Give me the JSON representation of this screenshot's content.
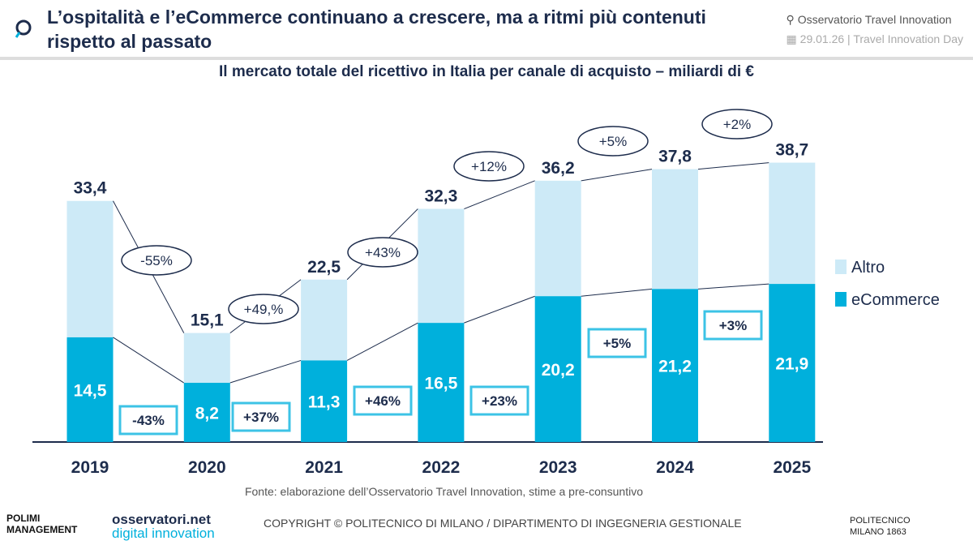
{
  "header": {
    "title": "L’ospitalità e l’eCommerce continuano a crescere, ma a ritmi più contenuti rispetto al passato",
    "observatory": "Osservatorio Travel Innovation",
    "event": "29.01.26 | Travel Innovation Day"
  },
  "chart_data": {
    "type": "bar",
    "stacked": true,
    "title": "Il mercato totale del ricettivo in Italia per canale di acquisto – miliardi di €",
    "categories": [
      "2019",
      "2020",
      "2021",
      "2022",
      "2023",
      "2024",
      "2025"
    ],
    "series": [
      {
        "name": "eCommerce",
        "values": [
          14.5,
          8.2,
          11.3,
          16.5,
          20.2,
          21.2,
          21.9
        ],
        "labels": [
          "14,5",
          "8,2",
          "11,3",
          "16,5",
          "20,2",
          "21,2",
          "21,9"
        ],
        "color": "#00b0dc"
      },
      {
        "name": "Altro",
        "color": "#cdeaf7"
      }
    ],
    "totals": [
      33.4,
      15.1,
      22.5,
      32.3,
      36.2,
      37.8,
      38.7
    ],
    "total_labels": [
      "33,4",
      "15,1",
      "22,5",
      "32,3",
      "36,2",
      "37,8",
      "38,7"
    ],
    "total_growth": [
      "-55%",
      "+49,%",
      "+43%",
      "+12%",
      "+5%",
      "+2%"
    ],
    "ecommerce_growth": [
      "-43%",
      "+37%",
      "+46%",
      "+23%",
      "+5%",
      "+3%"
    ],
    "legend_position": "right"
  },
  "footer": {
    "source": "Fonte: elaborazione dell’Osservatorio Travel Innovation, stime a pre-consuntivo",
    "copyright": "COPYRIGHT © POLITECNICO DI MILANO / DIPARTIMENTO DI INGEGNERIA GESTIONALE",
    "logo_polimi": "POLIMI MANAGEMENT",
    "logo_osservatori": "osservatori.net",
    "logo_osservatori_sub": "digital innovation",
    "logo_politecnico": "POLITECNICO MILANO 1863"
  }
}
